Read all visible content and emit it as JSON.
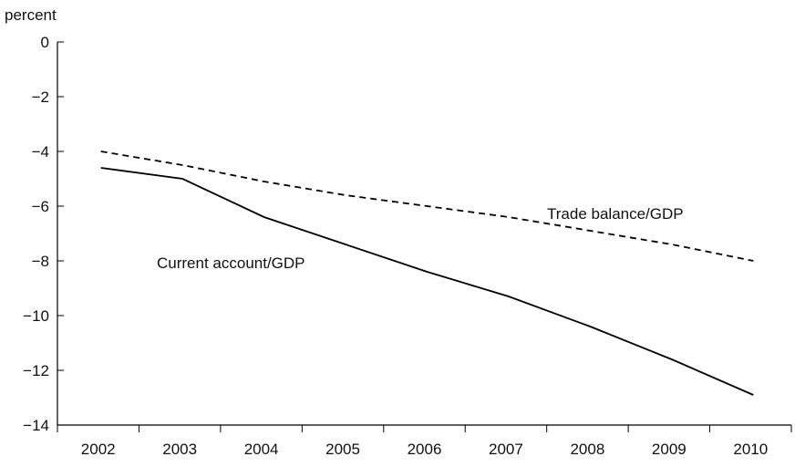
{
  "chart_data": {
    "type": "line",
    "ylabel": "percent",
    "ylim": [
      -14,
      0
    ],
    "yticks": [
      0,
      -2,
      -4,
      -6,
      -8,
      -10,
      -12,
      -14
    ],
    "ytick_labels": [
      "0",
      "−2",
      "−4",
      "−6",
      "−8",
      "−10",
      "−12",
      "−14"
    ],
    "categories": [
      "2002",
      "2003",
      "2004",
      "2005",
      "2006",
      "2007",
      "2008",
      "2009",
      "2010"
    ],
    "grid": false,
    "series": [
      {
        "name": "Trade balance/GDP",
        "style": "dashed",
        "values": [
          -4.0,
          -4.5,
          -5.1,
          -5.6,
          -6.0,
          -6.4,
          -6.9,
          -7.4,
          -8.0
        ]
      },
      {
        "name": "Current account/GDP",
        "style": "solid",
        "values": [
          -4.6,
          -5.0,
          -6.4,
          -7.4,
          -8.4,
          -9.3,
          -10.4,
          -11.6,
          -12.9
        ]
      }
    ]
  }
}
